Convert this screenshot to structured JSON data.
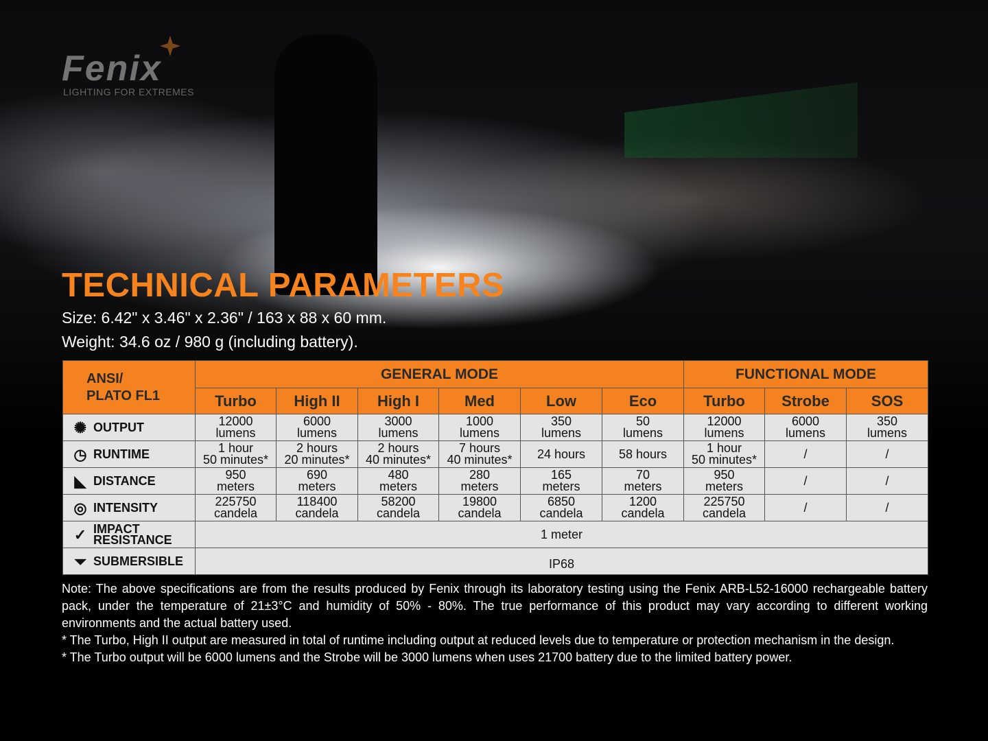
{
  "brand": {
    "logo": "Fenix",
    "tagline": "LIGHTING FOR EXTREMES"
  },
  "title": "TECHNICAL PARAMETERS",
  "size": "Size: 6.42\" x 3.46\" x 2.36\" / 163 x 88 x 60 mm.",
  "weight": "Weight: 34.6 oz / 980 g (including battery).",
  "colors": {
    "accent": "#f58220",
    "row_bg": "#e4e4e4"
  },
  "table": {
    "corner": [
      "ANSI/",
      "PLATO FL1"
    ],
    "groups": {
      "general": "GENERAL MODE",
      "functional": "FUNCTIONAL MODE"
    },
    "modes": [
      "Turbo",
      "High II",
      "High I",
      "Med",
      "Low",
      "Eco",
      "Turbo",
      "Strobe",
      "SOS"
    ],
    "rows": [
      {
        "label": "OUTPUT",
        "icon": "light-burst-icon",
        "cells": [
          [
            "12000",
            "lumens"
          ],
          [
            "6000",
            "lumens"
          ],
          [
            "3000",
            "lumens"
          ],
          [
            "1000",
            "lumens"
          ],
          [
            "350",
            "lumens"
          ],
          [
            "50",
            "lumens"
          ],
          [
            "12000",
            "lumens"
          ],
          [
            "6000",
            "lumens"
          ],
          [
            "350",
            "lumens"
          ]
        ]
      },
      {
        "label": "RUNTIME",
        "icon": "clock-icon",
        "cells": [
          [
            "1 hour",
            "50 minutes*"
          ],
          [
            "2 hours",
            "20 minutes*"
          ],
          [
            "2 hours",
            "40 minutes*"
          ],
          [
            "7 hours",
            "40 minutes*"
          ],
          [
            "24 hours"
          ],
          [
            "58 hours"
          ],
          [
            "1 hour",
            "50 minutes*"
          ],
          [
            "/"
          ],
          [
            "/"
          ]
        ]
      },
      {
        "label": "DISTANCE",
        "icon": "beam-distance-icon",
        "cells": [
          [
            "950",
            "meters"
          ],
          [
            "690",
            "meters"
          ],
          [
            "480",
            "meters"
          ],
          [
            "280",
            "meters"
          ],
          [
            "165",
            "meters"
          ],
          [
            "70",
            "meters"
          ],
          [
            "950",
            "meters"
          ],
          [
            "/"
          ],
          [
            "/"
          ]
        ]
      },
      {
        "label": "INTENSITY",
        "icon": "target-icon",
        "cells": [
          [
            "225750",
            "candela"
          ],
          [
            "118400",
            "candela"
          ],
          [
            "58200",
            "candela"
          ],
          [
            "19800",
            "candela"
          ],
          [
            "6850",
            "candela"
          ],
          [
            "1200",
            "candela"
          ],
          [
            "225750",
            "candela"
          ],
          [
            "/"
          ],
          [
            "/"
          ]
        ]
      }
    ],
    "impact": {
      "label": [
        "IMPACT",
        "RESISTANCE"
      ],
      "icon": "impact-icon",
      "value": "1 meter"
    },
    "submersible": {
      "label": "SUBMERSIBLE",
      "icon": "water-icon",
      "value": "IP68"
    }
  },
  "notes": [
    "Note: The above specifications are from the results produced by Fenix through its laboratory testing using the Fenix ARB-L52-16000 rechargeable battery pack, under the temperature of 21±3°C and humidity of 50% - 80%. The true performance of this product may vary according to different working environments and the actual battery used.",
    "* The Turbo, High II output are measured in total of runtime including output at reduced levels due to temperature or protection mechanism in the design.",
    "* The Turbo output will be 6000 lumens and the Strobe will be 3000 lumens when uses 21700 battery due to the limited battery power."
  ]
}
